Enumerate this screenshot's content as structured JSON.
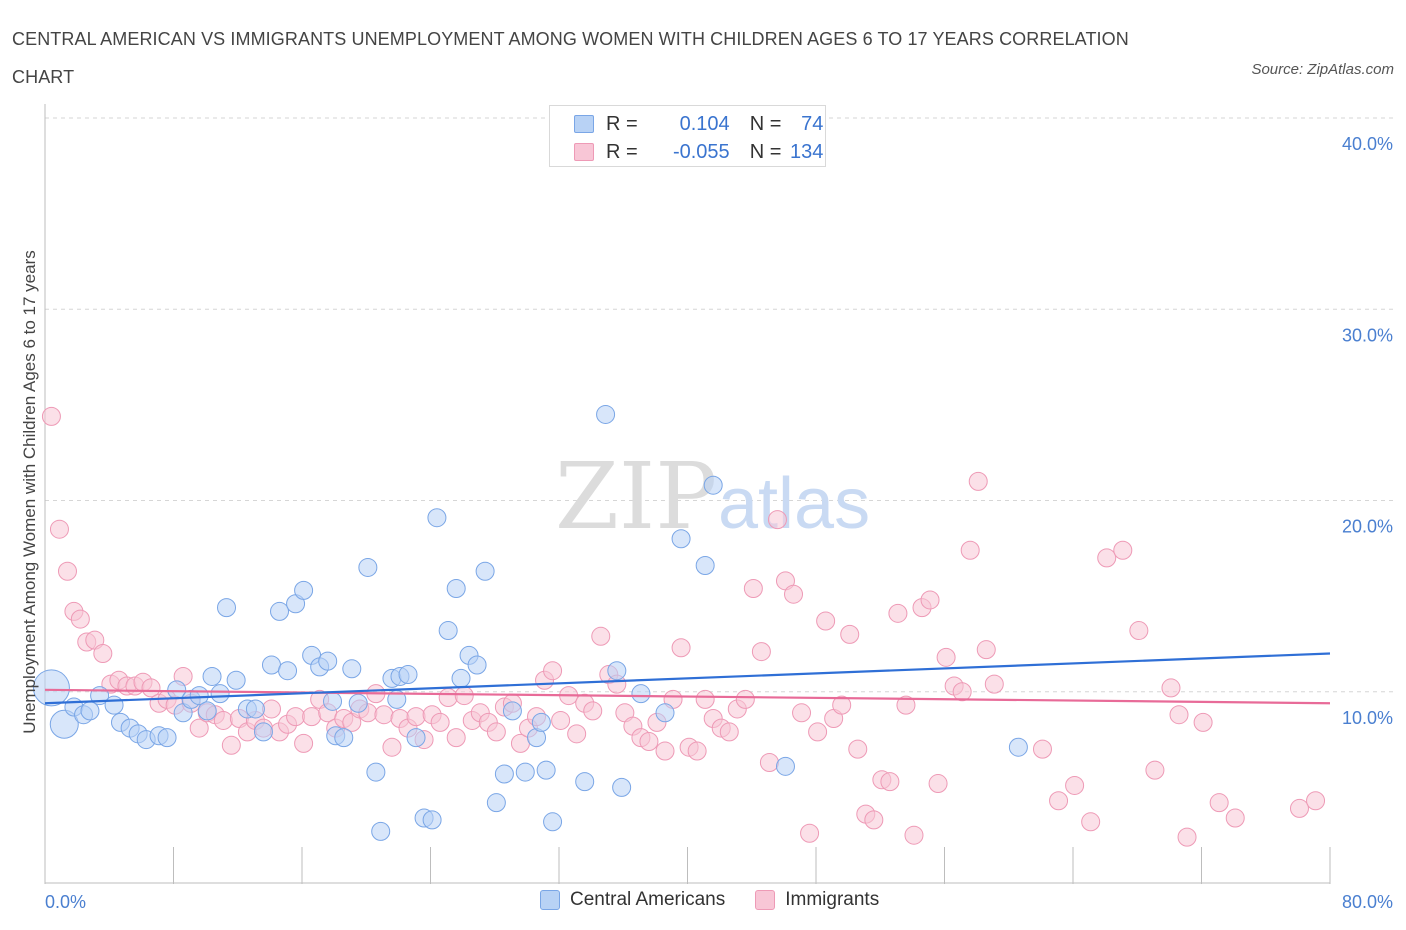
{
  "header": {
    "title": "CENTRAL AMERICAN VS IMMIGRANTS UNEMPLOYMENT AMONG WOMEN WITH CHILDREN AGES 6 TO 17 YEARS CORRELATION CHART",
    "source": "Source: ZipAtlas.com"
  },
  "watermark": {
    "zip": "ZIP",
    "atlas": "atlas"
  },
  "legend": {
    "rows": [
      {
        "r_label": "R =",
        "r_value": "0.104",
        "n_label": "N =",
        "n_value": "74",
        "color": "#b8d2f5",
        "border": "#7aa6e6"
      },
      {
        "r_label": "R =",
        "r_value": "-0.055",
        "n_label": "N =",
        "n_value": "134",
        "color": "#f8c6d6",
        "border": "#ee9ab6"
      }
    ]
  },
  "bottom_legend": {
    "series1": "Central Americans",
    "series2": "Immigrants"
  },
  "chart_data": {
    "type": "scatter",
    "xlabel": "",
    "ylabel": "Unemployment Among Women with Children Ages 6 to 17 years",
    "xlim": [
      0,
      80
    ],
    "ylim": [
      0,
      40
    ],
    "x_tick_labels": [
      "0.0%",
      "80.0%"
    ],
    "y_ticks": [
      10,
      20,
      30,
      40
    ],
    "y_tick_labels": [
      "10.0%",
      "20.0%",
      "30.0%",
      "40.0%"
    ],
    "grid": true,
    "colors": {
      "central": "#7aa6e6",
      "central_fill": "#b8d2f5",
      "immigrants": "#ee9ab6",
      "immigrants_fill": "#f8c6d6",
      "central_line": "#2f6fd6",
      "immigrants_line": "#e86b98"
    },
    "series": [
      {
        "name": "Central Americans",
        "trend": [
          [
            0,
            9.4
          ],
          [
            80,
            12.0
          ]
        ],
        "points": [
          [
            0.4,
            10.2
          ],
          [
            1.2,
            8.3
          ],
          [
            1.8,
            9.2
          ],
          [
            2.4,
            8.8
          ],
          [
            2.8,
            9.0
          ],
          [
            3.4,
            9.8
          ],
          [
            4.3,
            9.3
          ],
          [
            4.7,
            8.4
          ],
          [
            5.3,
            8.1
          ],
          [
            5.8,
            7.8
          ],
          [
            6.3,
            7.5
          ],
          [
            7.1,
            7.7
          ],
          [
            7.6,
            7.6
          ],
          [
            8.2,
            10.1
          ],
          [
            8.6,
            8.9
          ],
          [
            9.1,
            9.6
          ],
          [
            9.6,
            9.8
          ],
          [
            10.1,
            9.0
          ],
          [
            10.4,
            10.8
          ],
          [
            10.9,
            9.9
          ],
          [
            11.3,
            14.4
          ],
          [
            11.9,
            10.6
          ],
          [
            12.6,
            9.1
          ],
          [
            13.1,
            9.1
          ],
          [
            13.6,
            7.9
          ],
          [
            14.1,
            11.4
          ],
          [
            14.6,
            14.2
          ],
          [
            15.1,
            11.1
          ],
          [
            15.6,
            14.6
          ],
          [
            16.1,
            15.3
          ],
          [
            16.6,
            11.9
          ],
          [
            17.1,
            11.3
          ],
          [
            17.6,
            11.6
          ],
          [
            17.9,
            9.5
          ],
          [
            18.1,
            7.7
          ],
          [
            18.6,
            7.6
          ],
          [
            19.1,
            11.2
          ],
          [
            19.5,
            9.4
          ],
          [
            20.1,
            16.5
          ],
          [
            20.6,
            5.8
          ],
          [
            20.9,
            2.7
          ],
          [
            21.6,
            10.7
          ],
          [
            21.9,
            9.6
          ],
          [
            22.1,
            10.8
          ],
          [
            22.6,
            10.9
          ],
          [
            23.1,
            7.6
          ],
          [
            23.6,
            3.4
          ],
          [
            24.1,
            3.3
          ],
          [
            24.4,
            19.1
          ],
          [
            25.1,
            13.2
          ],
          [
            25.6,
            15.4
          ],
          [
            25.9,
            10.7
          ],
          [
            26.4,
            11.9
          ],
          [
            26.9,
            11.4
          ],
          [
            27.4,
            16.3
          ],
          [
            28.1,
            4.2
          ],
          [
            28.6,
            5.7
          ],
          [
            29.1,
            9.0
          ],
          [
            29.9,
            5.8
          ],
          [
            30.6,
            7.6
          ],
          [
            30.9,
            8.4
          ],
          [
            31.2,
            5.9
          ],
          [
            31.6,
            3.2
          ],
          [
            33.6,
            5.3
          ],
          [
            34.9,
            24.5
          ],
          [
            35.6,
            11.1
          ],
          [
            35.9,
            5.0
          ],
          [
            37.1,
            9.9
          ],
          [
            38.6,
            8.9
          ],
          [
            39.6,
            18.0
          ],
          [
            41.1,
            16.6
          ],
          [
            41.6,
            20.8
          ],
          [
            46.1,
            6.1
          ],
          [
            60.6,
            7.1
          ]
        ]
      },
      {
        "name": "Immigrants",
        "trend": [
          [
            0,
            10.1
          ],
          [
            80,
            9.4
          ]
        ],
        "points": [
          [
            0.4,
            24.4
          ],
          [
            0.9,
            18.5
          ],
          [
            1.4,
            16.3
          ],
          [
            1.8,
            14.2
          ],
          [
            2.2,
            13.8
          ],
          [
            2.6,
            12.6
          ],
          [
            3.1,
            12.7
          ],
          [
            3.6,
            12.0
          ],
          [
            4.1,
            10.4
          ],
          [
            4.6,
            10.6
          ],
          [
            5.1,
            10.3
          ],
          [
            5.6,
            10.3
          ],
          [
            6.1,
            10.5
          ],
          [
            6.6,
            10.2
          ],
          [
            7.1,
            9.4
          ],
          [
            7.6,
            9.6
          ],
          [
            8.1,
            9.3
          ],
          [
            8.6,
            10.8
          ],
          [
            9.1,
            9.4
          ],
          [
            9.6,
            8.1
          ],
          [
            10.1,
            8.9
          ],
          [
            10.6,
            8.8
          ],
          [
            11.1,
            8.5
          ],
          [
            11.6,
            7.2
          ],
          [
            12.1,
            8.6
          ],
          [
            12.6,
            7.9
          ],
          [
            13.1,
            8.5
          ],
          [
            13.6,
            8.1
          ],
          [
            14.1,
            9.1
          ],
          [
            14.6,
            7.9
          ],
          [
            15.1,
            8.3
          ],
          [
            15.6,
            8.7
          ],
          [
            16.1,
            7.3
          ],
          [
            16.6,
            8.7
          ],
          [
            17.1,
            9.6
          ],
          [
            17.6,
            8.9
          ],
          [
            18.1,
            8.1
          ],
          [
            18.6,
            8.6
          ],
          [
            19.1,
            8.4
          ],
          [
            19.6,
            9.1
          ],
          [
            20.1,
            8.9
          ],
          [
            20.6,
            9.9
          ],
          [
            21.1,
            8.8
          ],
          [
            21.6,
            7.1
          ],
          [
            22.1,
            8.6
          ],
          [
            22.6,
            8.1
          ],
          [
            23.1,
            8.7
          ],
          [
            23.6,
            7.5
          ],
          [
            24.1,
            8.8
          ],
          [
            24.6,
            8.4
          ],
          [
            25.1,
            9.7
          ],
          [
            25.6,
            7.6
          ],
          [
            26.1,
            9.8
          ],
          [
            26.6,
            8.5
          ],
          [
            27.1,
            8.9
          ],
          [
            27.6,
            8.4
          ],
          [
            28.1,
            7.9
          ],
          [
            28.6,
            9.2
          ],
          [
            29.1,
            9.4
          ],
          [
            29.6,
            7.3
          ],
          [
            30.1,
            8.1
          ],
          [
            30.6,
            8.7
          ],
          [
            31.1,
            10.6
          ],
          [
            31.6,
            11.1
          ],
          [
            32.1,
            8.5
          ],
          [
            32.6,
            9.8
          ],
          [
            33.1,
            7.8
          ],
          [
            33.6,
            9.4
          ],
          [
            34.1,
            9.0
          ],
          [
            34.6,
            12.9
          ],
          [
            35.1,
            10.9
          ],
          [
            35.6,
            10.4
          ],
          [
            36.1,
            8.9
          ],
          [
            36.6,
            8.2
          ],
          [
            37.1,
            7.6
          ],
          [
            37.6,
            7.4
          ],
          [
            38.1,
            8.4
          ],
          [
            38.6,
            6.9
          ],
          [
            39.1,
            9.6
          ],
          [
            39.6,
            12.3
          ],
          [
            40.1,
            7.1
          ],
          [
            40.6,
            6.9
          ],
          [
            41.1,
            9.6
          ],
          [
            41.6,
            8.6
          ],
          [
            42.1,
            8.1
          ],
          [
            42.6,
            7.9
          ],
          [
            43.1,
            9.1
          ],
          [
            43.6,
            9.6
          ],
          [
            44.1,
            15.4
          ],
          [
            44.6,
            12.1
          ],
          [
            45.1,
            6.3
          ],
          [
            45.6,
            19.0
          ],
          [
            46.1,
            15.8
          ],
          [
            46.6,
            15.1
          ],
          [
            47.1,
            8.9
          ],
          [
            47.6,
            2.6
          ],
          [
            48.1,
            7.9
          ],
          [
            48.6,
            13.7
          ],
          [
            49.1,
            8.6
          ],
          [
            49.6,
            9.3
          ],
          [
            50.1,
            13.0
          ],
          [
            50.6,
            7.0
          ],
          [
            51.1,
            3.6
          ],
          [
            51.6,
            3.3
          ],
          [
            52.1,
            5.4
          ],
          [
            52.6,
            5.3
          ],
          [
            53.1,
            14.1
          ],
          [
            53.6,
            9.3
          ],
          [
            54.1,
            2.5
          ],
          [
            54.6,
            14.4
          ],
          [
            55.1,
            14.8
          ],
          [
            55.6,
            5.2
          ],
          [
            56.1,
            11.8
          ],
          [
            56.6,
            10.3
          ],
          [
            57.1,
            10.0
          ],
          [
            57.6,
            17.4
          ],
          [
            58.1,
            21.0
          ],
          [
            58.6,
            12.2
          ],
          [
            59.1,
            10.4
          ],
          [
            62.1,
            7.0
          ],
          [
            63.1,
            4.3
          ],
          [
            64.1,
            5.1
          ],
          [
            65.1,
            3.2
          ],
          [
            66.1,
            17.0
          ],
          [
            67.1,
            17.4
          ],
          [
            68.1,
            13.2
          ],
          [
            69.1,
            5.9
          ],
          [
            70.1,
            10.2
          ],
          [
            70.6,
            8.8
          ],
          [
            71.1,
            2.4
          ],
          [
            72.1,
            8.4
          ],
          [
            73.1,
            4.2
          ],
          [
            74.1,
            3.4
          ],
          [
            78.1,
            3.9
          ],
          [
            79.1,
            4.3
          ]
        ]
      }
    ]
  }
}
